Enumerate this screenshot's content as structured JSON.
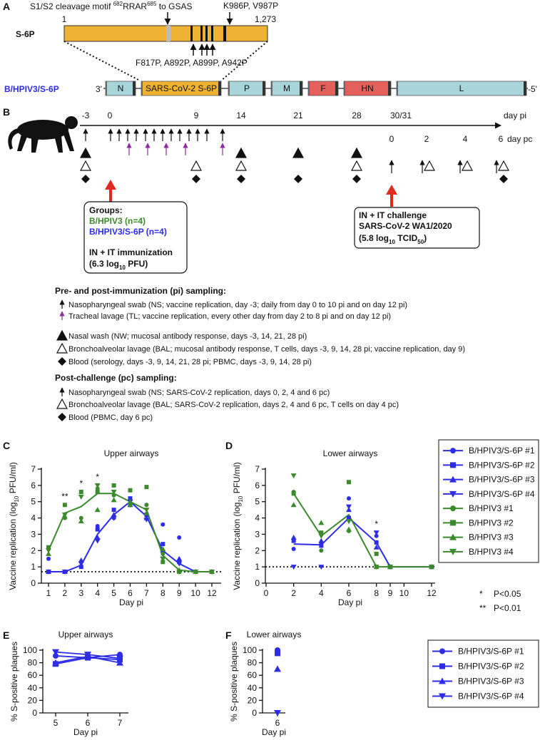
{
  "panel_labels": {
    "a": "A",
    "b": "B",
    "c": "C",
    "d": "D",
    "e": "E",
    "f": "F"
  },
  "panel_a": {
    "cleavage": {
      "text": "S1/S2 cleavage motif ",
      "start": "682",
      "motif": "RRAR",
      "end": "685",
      "post": " to GSAS"
    },
    "mutation_top": "K986P, V987P",
    "protein": "S-6P",
    "first": "1",
    "last": "1,273",
    "mutations_bottom": "F817P, A892P, A899P, A942P",
    "construct": "B/HPIV3/S-6P",
    "left_end": "3'",
    "right_end": "-5'",
    "genes": [
      "N",
      "SARS-CoV-2 S-6P",
      "P",
      "M",
      "F",
      "HN",
      "L"
    ]
  },
  "panel_b": {
    "days_pi": [
      "-3",
      "0",
      "9",
      "14",
      "21",
      "28",
      "30/31"
    ],
    "pi_unit": "day pi",
    "days_pc": [
      "0",
      "2",
      "4",
      "6"
    ],
    "pc_unit": "day pc",
    "groups": {
      "heading": "Groups:",
      "group1": "B/HPIV3 (n=4)",
      "group2": "B/HPIV3/S-6P (n=4)",
      "route": "IN + IT immunization",
      "dose": [
        "(6.3 log",
        "10",
        " PFU)"
      ]
    },
    "challenge": {
      "route": "IN + IT challenge",
      "virus": "SARS-CoV-2 WA1/2020",
      "dose": [
        "(5.8 log",
        "10",
        " TCID",
        "50",
        ")"
      ]
    },
    "pi_heading": "Pre- and post-immunization (pi) sampling:",
    "pi_items": [
      "Nasopharyngeal swab (NS; vaccine replication, day -3; daily from day 0 to 10 pi and on day 12 pi)",
      "Tracheal lavage (TL; vaccine replication, every other day from day 2 to 8 pi and on day 12 pi)",
      "Nasal wash (NW; mucosal antibody response, days -3, 14, 21, 28 pi)",
      "Bronchoalveolar lavage (BAL; mucosal antibody response, T cells, days -3, 9, 14, 28 pi; vaccine replication, day 9)",
      "Blood (serology, days -3, 9, 14, 21, 28 pi; PBMC, days -3, 9, 14, 28 pi)"
    ],
    "pc_heading": "Post-challenge (pc) sampling:",
    "pc_items": [
      "Nasopharyngeal swab (NS; SARS-CoV-2 replication, days 0, 2, 4 and 6 pc)",
      "Bronchoalveolar lavage (BAL; SARS-CoV-2 replication, days 2, 4 and 6 pc, T cells on day 4 pc)",
      "Blood (PBMC, day 6 pc)"
    ]
  },
  "chart_data": [
    {
      "type": "line",
      "title": "Upper airways",
      "xlabel": "Day pi",
      "ylabel": [
        "Vaccine replication (log",
        "10",
        " PFU/ml)"
      ],
      "categories": [
        "1",
        "2",
        "3",
        "4",
        "5",
        "6",
        "7",
        "8",
        "9",
        "10",
        "12"
      ],
      "ylim": [
        0,
        7
      ],
      "yticks": [
        0,
        1,
        2,
        3,
        4,
        5,
        6,
        7
      ],
      "threshold": 0.7,
      "series": [
        {
          "name": "B/HPIV3/S-6P #1",
          "color": "#2d2de6",
          "marker": "circle",
          "values": [
            1.5,
            0.7,
            1.3,
            3.5,
            4.0,
            5.1,
            4.8,
            3.6,
            2.8,
            0.7,
            0.7
          ]
        },
        {
          "name": "B/HPIV3/S-6P #2",
          "color": "#2d2de6",
          "marker": "square",
          "values": [
            0.7,
            0.7,
            1.0,
            3.3,
            4.5,
            5.2,
            4.2,
            2.4,
            1.3,
            0.7,
            0.7
          ]
        },
        {
          "name": "B/HPIV3/S-6P #3",
          "color": "#2d2de6",
          "marker": "triangle",
          "values": [
            0.7,
            0.7,
            1.4,
            2.8,
            4.2,
            4.8,
            4.0,
            2.0,
            1.5,
            0.7,
            0.7
          ]
        },
        {
          "name": "B/HPIV3/S-6P #4",
          "color": "#2d2de6",
          "marker": "triangle-down",
          "values": [
            0.7,
            0.7,
            1.2,
            2.6,
            4.0,
            5.0,
            3.9,
            1.5,
            1.2,
            0.7,
            0.7
          ]
        },
        {
          "name": "B/HPIV3 #1",
          "color": "#3b8a2c",
          "marker": "circle",
          "values": [
            2.1,
            4.0,
            4.0,
            5.8,
            5.4,
            4.8,
            4.8,
            1.8,
            0.7,
            0.7,
            0.7
          ]
        },
        {
          "name": "B/HPIV3 #2",
          "color": "#3b8a2c",
          "marker": "square",
          "values": [
            2.2,
            4.8,
            5.6,
            5.6,
            6.0,
            5.7,
            5.9,
            1.3,
            0.7,
            0.7,
            0.7
          ]
        },
        {
          "name": "B/HPIV3 #3",
          "color": "#3b8a2c",
          "marker": "triangle",
          "values": [
            1.8,
            4.1,
            3.8,
            4.5,
            5.1,
            5.0,
            4.3,
            2.1,
            0.8,
            0.7,
            0.7
          ]
        },
        {
          "name": "B/HPIV3 #4",
          "color": "#3b8a2c",
          "marker": "triangle-down",
          "values": [
            2.0,
            4.2,
            5.3,
            6.0,
            5.6,
            4.8,
            4.5,
            1.5,
            0.7,
            0.7,
            0.7
          ]
        }
      ],
      "means": [
        {
          "color": "#2d2de6",
          "values": [
            0.7,
            0.7,
            1.1,
            3.0,
            4.2,
            5.0,
            4.1,
            2.0,
            1.2,
            0.7,
            0.7
          ]
        },
        {
          "color": "#3b8a2c",
          "values": [
            2.0,
            4.3,
            4.7,
            5.5,
            5.5,
            5.0,
            4.5,
            1.7,
            0.8,
            0.7,
            0.7
          ]
        }
      ],
      "annotations": [
        {
          "text": "**",
          "category": 1
        },
        {
          "text": "*",
          "category": 2
        },
        {
          "text": "*",
          "category": 3
        }
      ]
    },
    {
      "type": "line",
      "title": "Lower airways",
      "xlabel": "Day pi",
      "ylabel": [
        "Vaccine replication (log",
        "10",
        " PFU/ml)"
      ],
      "x": [
        2,
        4,
        6,
        8,
        9,
        12
      ],
      "xlim": [
        0,
        12
      ],
      "xticks": [
        0,
        2,
        4,
        6,
        8,
        9,
        10,
        12
      ],
      "ylim": [
        0,
        7
      ],
      "yticks": [
        0,
        1,
        2,
        3,
        4,
        5,
        6,
        7
      ],
      "threshold": 1,
      "series": [
        {
          "color": "#2d2de6",
          "marker": "circle",
          "values": [
            2.1,
            2.5,
            5.2,
            2.9,
            1,
            1
          ]
        },
        {
          "color": "#2d2de6",
          "marker": "square",
          "values": [
            2.6,
            2.3,
            4.0,
            2.5,
            1,
            1
          ]
        },
        {
          "color": "#2d2de6",
          "marker": "triangle",
          "values": [
            2.8,
            2.6,
            4.5,
            2.2,
            1,
            1
          ]
        },
        {
          "color": "#2d2de6",
          "marker": "triangle-down",
          "values": [
            1.0,
            1.0,
            4.7,
            3.1,
            1,
            1
          ]
        },
        {
          "color": "#3b8a2c",
          "marker": "circle",
          "values": [
            5.6,
            2.0,
            3.2,
            1,
            1,
            1
          ]
        },
        {
          "color": "#3b8a2c",
          "marker": "square",
          "values": [
            5.5,
            3.1,
            6.2,
            1.8,
            1,
            1
          ]
        },
        {
          "color": "#3b8a2c",
          "marker": "triangle",
          "values": [
            4.8,
            3.7,
            3.3,
            1,
            1,
            1
          ]
        },
        {
          "color": "#3b8a2c",
          "marker": "triangle-down",
          "values": [
            6.6,
            2.9,
            3.8,
            1,
            1,
            1
          ]
        }
      ],
      "means": [
        {
          "color": "#2d2de6",
          "values": [
            2.4,
            2.35,
            4.0,
            2.5,
            1,
            1
          ]
        },
        {
          "color": "#3b8a2c",
          "values": [
            5.5,
            2.9,
            4.2,
            1,
            1,
            1
          ]
        }
      ],
      "annotations": [
        {
          "text": "*",
          "x": 8
        }
      ],
      "significance": [
        {
          "symbol": "*",
          "text": "P<0.05"
        },
        {
          "symbol": "**",
          "text": "P<0.01"
        }
      ]
    },
    {
      "type": "line",
      "title": "Upper airways",
      "xlabel": "Day pi",
      "ylabel": [
        "% S-positive plaques"
      ],
      "categories": [
        "5",
        "6",
        "7"
      ],
      "ylim": [
        0,
        100
      ],
      "yticks": [
        0,
        20,
        40,
        60,
        80,
        100
      ],
      "series": [
        {
          "color": "#2d2de6",
          "marker": "circle",
          "values": [
            91,
            88,
            93
          ]
        },
        {
          "color": "#2d2de6",
          "marker": "square",
          "values": [
            78,
            88,
            85
          ]
        },
        {
          "color": "#2d2de6",
          "marker": "triangle",
          "values": [
            80,
            90,
            80
          ]
        },
        {
          "color": "#2d2de6",
          "marker": "triangle-down",
          "values": [
            97,
            93,
            87
          ]
        }
      ]
    },
    {
      "type": "scatter",
      "title": "Lower airways",
      "xlabel": "Day pi",
      "ylabel": [
        "% S-positive plaques"
      ],
      "categories": [
        "6"
      ],
      "ylim": [
        0,
        100
      ],
      "yticks": [
        0,
        20,
        40,
        60,
        80,
        100
      ],
      "series": [
        {
          "name": "B/HPIV3/S-6P #1",
          "color": "#2d2de6",
          "marker": "circle",
          "values": [
            100
          ]
        },
        {
          "name": "B/HPIV3/S-6P #2",
          "color": "#2d2de6",
          "marker": "square",
          "values": [
            95
          ]
        },
        {
          "name": "B/HPIV3/S-6P #3",
          "color": "#2d2de6",
          "marker": "triangle",
          "values": [
            70
          ]
        },
        {
          "name": "B/HPIV3/S-6P #4",
          "color": "#2d2de6",
          "marker": "triangle-down",
          "values": [
            0
          ]
        }
      ]
    }
  ]
}
